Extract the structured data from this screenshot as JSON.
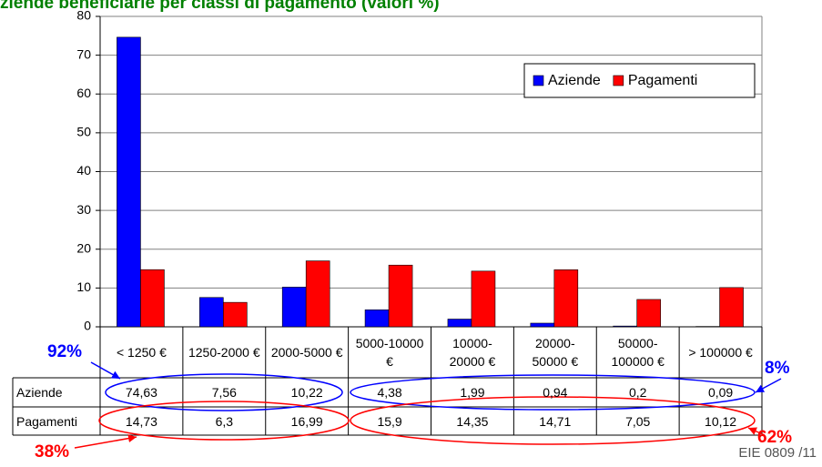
{
  "chart_data": {
    "type": "bar",
    "title": "ziende beneficiarie per classi di pagamento (valori %)",
    "categories": [
      "< 1250 €",
      "1250-2000 €",
      "2000-5000 €",
      "5000-10000 €",
      "10000-20000 €",
      "20000-50000 €",
      "50000-100000 €",
      "> 100000 €"
    ],
    "series": [
      {
        "name": "Aziende",
        "color": "#0000ff",
        "values": [
          74.63,
          7.56,
          10.22,
          4.38,
          1.99,
          0.94,
          0.2,
          0.09
        ],
        "value_labels": [
          "74,63",
          "7,56",
          "10,22",
          "4,38",
          "1,99",
          "0,94",
          "0,2",
          "0,09"
        ]
      },
      {
        "name": "Pagamenti",
        "color": "#ff0000",
        "values": [
          14.73,
          6.3,
          16.99,
          15.9,
          14.35,
          14.71,
          7.05,
          10.12
        ],
        "value_labels": [
          "14,73",
          "6,3",
          "16,99",
          "15,9",
          "14,35",
          "14,71",
          "7,05",
          "10,12"
        ]
      }
    ],
    "ylim": [
      0,
      80
    ],
    "yticks": [
      0,
      10,
      20,
      30,
      40,
      50,
      60,
      70,
      80
    ],
    "grid": true,
    "legend": "upper right",
    "annotations": [
      "92%",
      "8%",
      "38%",
      "62%",
      "EIE 0809 /11"
    ]
  }
}
